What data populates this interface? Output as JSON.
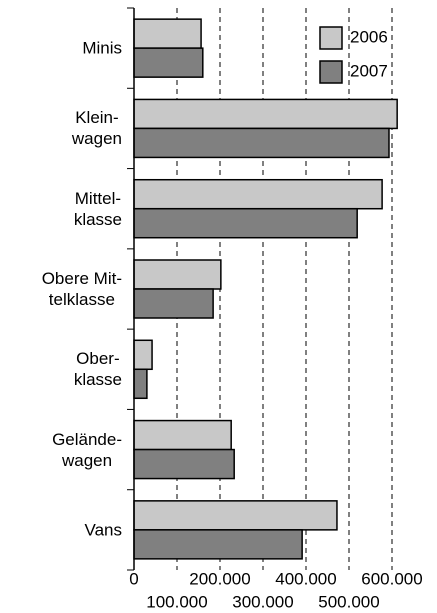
{
  "chart_data": {
    "type": "barh",
    "categories": [
      "Minis",
      "Klein-\nwagen",
      "Mittel-\nklasse",
      "Obere Mit-\ntelklasse",
      "Ober-\nklasse",
      "Gelände-\nwagen",
      "Vans"
    ],
    "series": [
      {
        "name": "2006",
        "color": "#c8c8c8",
        "values": [
          156000,
          612000,
          577000,
          202000,
          42000,
          226000,
          472000
        ]
      },
      {
        "name": "2007",
        "color": "#808080",
        "values": [
          160000,
          593000,
          519000,
          184000,
          30000,
          233000,
          391000
        ]
      }
    ],
    "xlim": [
      0,
      600000
    ],
    "xticks": [
      0,
      {
        "value": 100000,
        "label": "100.000"
      },
      {
        "value": 200000,
        "label": "200.000"
      },
      {
        "value": 300000,
        "label": "300.000"
      },
      {
        "value": 400000,
        "label": "400.000"
      },
      {
        "value": 500000,
        "label": "500.000"
      },
      {
        "value": 600000,
        "label": "600.000"
      }
    ],
    "grid": true,
    "legend": "top-right"
  }
}
